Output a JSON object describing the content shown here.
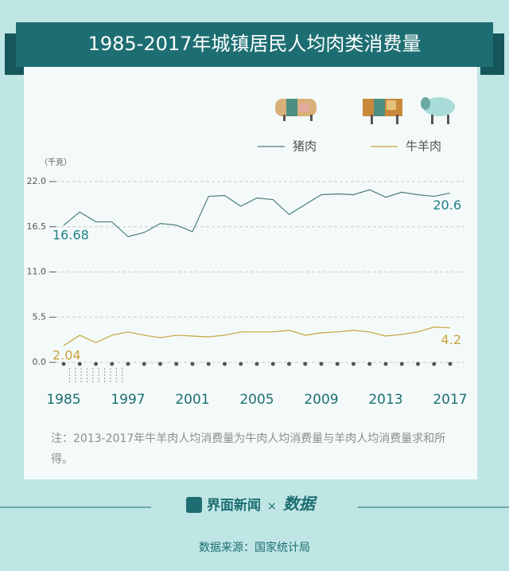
{
  "chart_data": {
    "type": "line",
    "title": "1985-2017年城镇居民人均肉类消费量",
    "y_label": "（千克）",
    "categories": [
      "1985",
      null,
      null,
      null,
      "1997",
      null,
      null,
      null,
      "2001",
      null,
      null,
      null,
      "2005",
      null,
      null,
      null,
      "2009",
      null,
      null,
      null,
      "2013",
      null,
      null,
      null,
      "2017"
    ],
    "series": [
      {
        "name": "猪肉",
        "color": "#4a7f76",
        "label_color": "#1f7f86",
        "values": [
          16.68,
          18.3,
          17.1,
          17.1,
          15.3,
          15.8,
          16.9,
          16.7,
          15.9,
          20.2,
          20.3,
          19.0,
          20.0,
          19.8,
          18.0,
          19.2,
          20.4,
          20.5,
          20.4,
          21.0,
          20.1,
          20.7,
          20.4,
          20.2,
          20.6
        ]
      },
      {
        "name": "牛羊肉",
        "color": "#c9a23a",
        "label_color": "#c9a23a",
        "values": [
          2.04,
          3.3,
          2.4,
          3.3,
          3.7,
          3.3,
          3.0,
          3.3,
          3.2,
          3.1,
          3.3,
          3.7,
          3.7,
          3.7,
          3.9,
          3.3,
          3.6,
          3.7,
          3.9,
          3.7,
          3.2,
          3.4,
          3.7,
          4.3,
          4.2
        ]
      }
    ],
    "ylim": [
      0,
      22
    ],
    "yticks": [
      {
        "value": 0,
        "label": "0.0"
      },
      5.5,
      {
        "value": 11,
        "label": "11.0"
      },
      16.5,
      {
        "value": 22,
        "label": "22.0"
      }
    ],
    "grid": true,
    "note": "注：2013-2017年牛羊肉人均消费量为牛肉人均消费量与羊肉人均消费量求和所得。",
    "footer": {
      "brand": "界面新闻",
      "separator": "×",
      "source": "数据来源：国家统计局"
    }
  }
}
